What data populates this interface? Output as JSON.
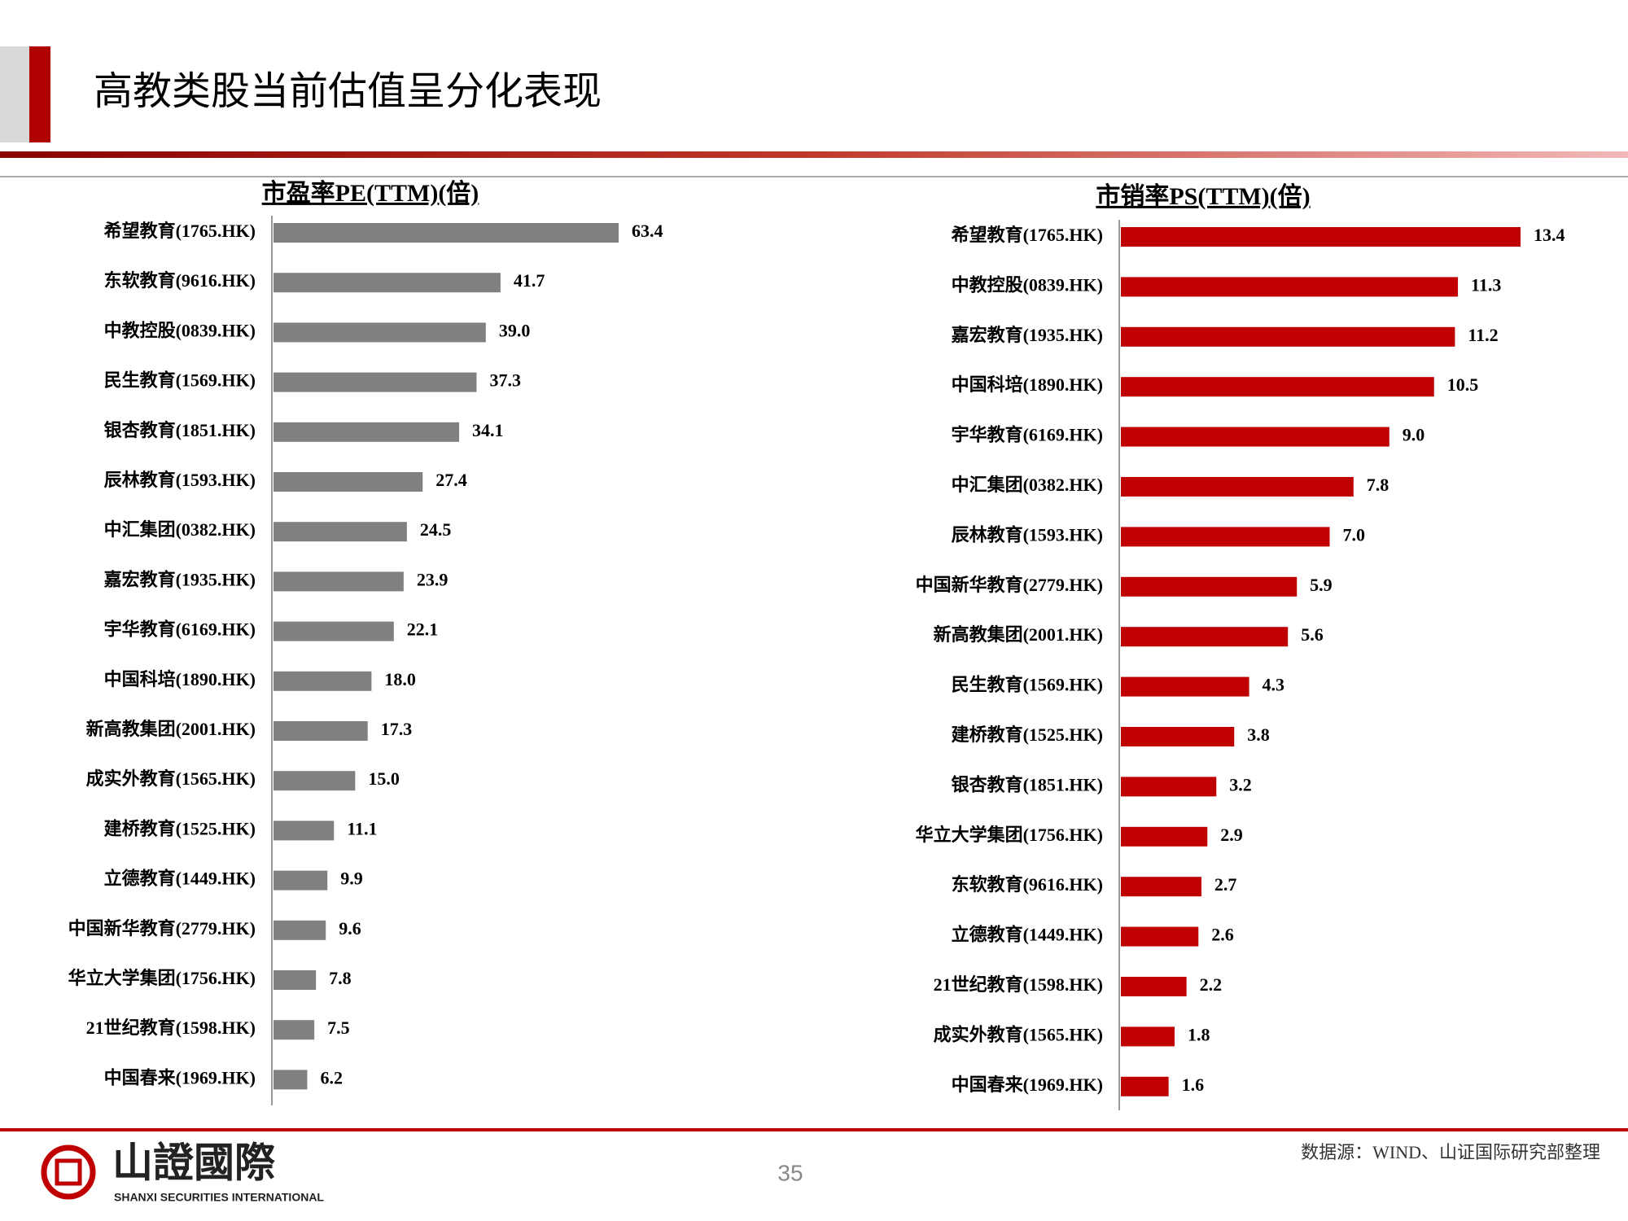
{
  "header": {
    "title": "高教类股当前估值呈分化表现"
  },
  "chart_data": [
    {
      "type": "bar",
      "orientation": "horizontal",
      "title": "市盈率PE(TTM)(倍)",
      "color": "#808080",
      "categories": [
        "希望教育(1765.HK)",
        "东软教育(9616.HK)",
        "中教控股(0839.HK)",
        "民生教育(1569.HK)",
        "银杏教育(1851.HK)",
        "辰林教育(1593.HK)",
        "中汇集团(0382.HK)",
        "嘉宏教育(1935.HK)",
        "宇华教育(6169.HK)",
        "中国科培(1890.HK)",
        "新高教集团(2001.HK)",
        "成实外教育(1565.HK)",
        "建桥教育(1525.HK)",
        "立德教育(1449.HK)",
        "中国新华教育(2779.HK)",
        "华立大学集团(1756.HK)",
        "21世纪教育(1598.HK)",
        "中国春来(1969.HK)"
      ],
      "values": [
        63.4,
        41.7,
        39.0,
        37.3,
        34.1,
        27.4,
        24.5,
        23.9,
        22.1,
        18.0,
        17.3,
        15.0,
        11.1,
        9.9,
        9.6,
        7.8,
        7.5,
        6.2
      ],
      "value_labels": [
        "63.4",
        "41.7",
        "39.0",
        "37.3",
        "34.1",
        "27.4",
        "24.5",
        "23.9",
        "22.1",
        "18.0",
        "17.3",
        "15.0",
        "11.1",
        "9.9",
        "9.6",
        "7.8",
        "7.5",
        "6.2"
      ]
    },
    {
      "type": "bar",
      "orientation": "horizontal",
      "title": "市销率PS(TTM)(倍)",
      "color": "#c00000",
      "categories": [
        "希望教育(1765.HK)",
        "中教控股(0839.HK)",
        "嘉宏教育(1935.HK)",
        "中国科培(1890.HK)",
        "宇华教育(6169.HK)",
        "中汇集团(0382.HK)",
        "辰林教育(1593.HK)",
        "中国新华教育(2779.HK)",
        "新高教集团(2001.HK)",
        "民生教育(1569.HK)",
        "建桥教育(1525.HK)",
        "银杏教育(1851.HK)",
        "华立大学集团(1756.HK)",
        "东软教育(9616.HK)",
        "立德教育(1449.HK)",
        "21世纪教育(1598.HK)",
        "成实外教育(1565.HK)",
        "中国春来(1969.HK)"
      ],
      "values": [
        13.4,
        11.3,
        11.2,
        10.5,
        9.0,
        7.8,
        7.0,
        5.9,
        5.6,
        4.3,
        3.8,
        3.2,
        2.9,
        2.7,
        2.6,
        2.2,
        1.8,
        1.6
      ],
      "value_labels": [
        "13.4",
        "11.3",
        "11.2",
        "10.5",
        "9.0",
        "7.8",
        "7.0",
        "5.9",
        "5.6",
        "4.3",
        "3.8",
        "3.2",
        "2.9",
        "2.7",
        "2.6",
        "2.2",
        "1.8",
        "1.6"
      ]
    }
  ],
  "footer": {
    "logo": "山證國際",
    "logo_en": "SHANXI SECURITIES INTERNATIONAL",
    "page": "35",
    "source": "数据源：WIND、山证国际研究部整理"
  }
}
